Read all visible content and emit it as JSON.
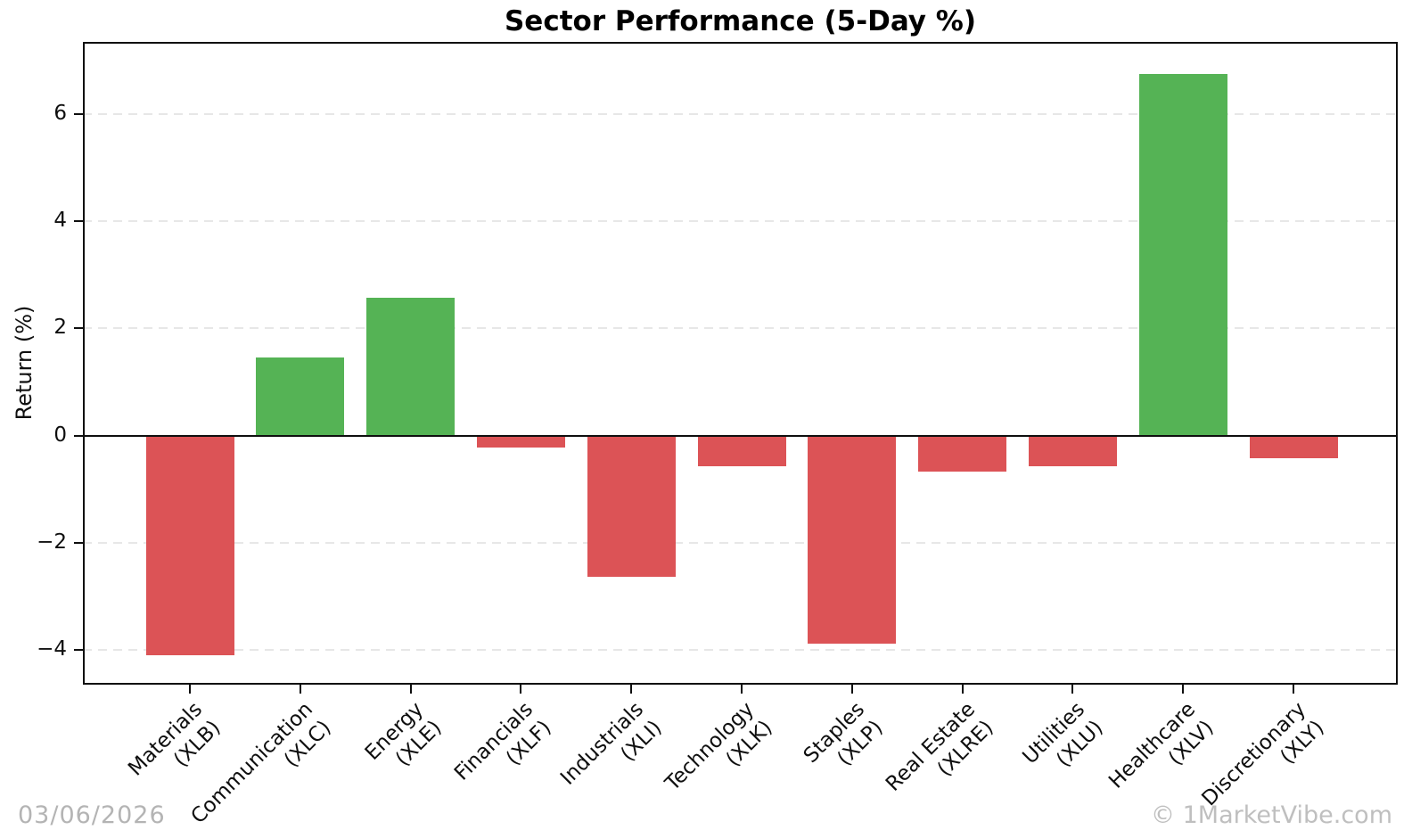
{
  "chart_data": {
    "type": "bar",
    "title": "Sector Performance (5-Day %)",
    "xlabel": "",
    "ylabel": "Return (%)",
    "categories": [
      "Materials (XLB)",
      "Communication (XLC)",
      "Energy (XLE)",
      "Financials (XLF)",
      "Industrials (XLI)",
      "Technology (XLK)",
      "Staples (XLP)",
      "Real Estate (XLRE)",
      "Utilities (XLU)",
      "Healthcare (XLV)",
      "Discretionary (XLY)"
    ],
    "bars": [
      {
        "sector": "Materials",
        "ticker": "(XLB)",
        "value": -4.1
      },
      {
        "sector": "Communication",
        "ticker": "(XLC)",
        "value": 1.45
      },
      {
        "sector": "Energy",
        "ticker": "(XLE)",
        "value": 2.58
      },
      {
        "sector": "Financials",
        "ticker": "(XLF)",
        "value": -0.22
      },
      {
        "sector": "Industrials",
        "ticker": "(XLI)",
        "value": -2.63
      },
      {
        "sector": "Technology",
        "ticker": "(XLK)",
        "value": -0.58
      },
      {
        "sector": "Staples",
        "ticker": "(XLP)",
        "value": -3.88
      },
      {
        "sector": "Real Estate",
        "ticker": "(XLRE)",
        "value": -0.67
      },
      {
        "sector": "Utilities",
        "ticker": "(XLU)",
        "value": -0.58
      },
      {
        "sector": "Healthcare",
        "ticker": "(XLV)",
        "value": 6.75
      },
      {
        "sector": "Discretionary",
        "ticker": "(XLY)",
        "value": -0.43
      }
    ],
    "values": [
      -4.1,
      1.45,
      2.58,
      -0.22,
      -2.63,
      -0.58,
      -3.88,
      -0.67,
      -0.58,
      6.75,
      -0.43
    ],
    "yticks": [
      6,
      4,
      2,
      0,
      -2,
      -4
    ],
    "ytick_labels": [
      "6",
      "4",
      "2",
      "0",
      "−2",
      "−4"
    ],
    "ylim": [
      -4.65,
      7.35
    ],
    "grid": "horizontal-dashed",
    "legend": "none",
    "colors": {
      "positive": "#55b355",
      "negative": "#dc5356",
      "gridline": "#e7e7e7",
      "axis": "#0f0f0f",
      "footer_text": "#b4b4b4"
    }
  },
  "footer": {
    "date": "03/06/2026",
    "watermark": "© 1MarketVibe.com"
  }
}
